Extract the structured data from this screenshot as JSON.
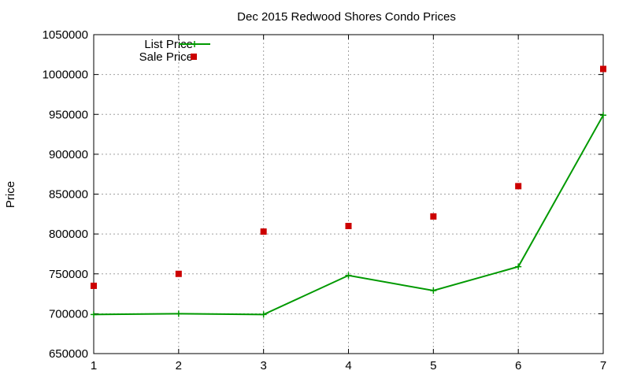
{
  "chart_data": {
    "type": "line",
    "title": "Dec 2015 Redwood Shores Condo Prices",
    "xlabel": "",
    "ylabel": "Price",
    "x": [
      1,
      2,
      3,
      4,
      5,
      6,
      7
    ],
    "xlim": [
      1,
      7
    ],
    "ylim": [
      650000,
      1050000
    ],
    "yticks": [
      650000,
      700000,
      750000,
      800000,
      850000,
      900000,
      950000,
      1000000,
      1050000
    ],
    "xticks": [
      1,
      2,
      3,
      4,
      5,
      6,
      7
    ],
    "grid": true,
    "legend_position": "top-left",
    "series": [
      {
        "name": "List Price",
        "style": "linespoints",
        "marker": "plus",
        "color": "#009900",
        "values": [
          699000,
          700000,
          699000,
          748000,
          729000,
          759000,
          949000
        ]
      },
      {
        "name": "Sale Price",
        "style": "points",
        "marker": "square",
        "color": "#cc0000",
        "values": [
          735000,
          750000,
          803000,
          810000,
          822000,
          860000,
          1007000
        ]
      }
    ]
  }
}
